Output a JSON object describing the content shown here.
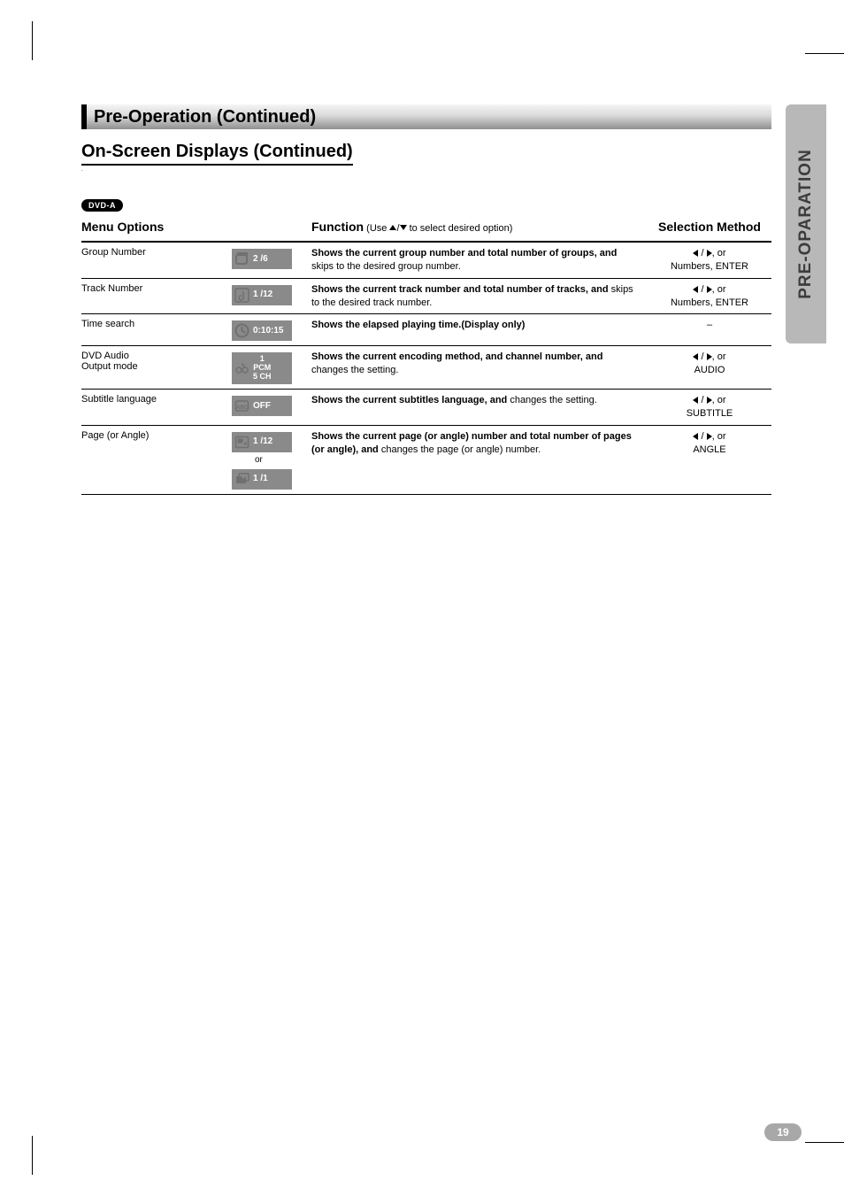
{
  "crop_marks": true,
  "banner_title": "Pre-Operation (Continued)",
  "subtitle": "On-Screen Displays (Continued)",
  "pill": "DVD-A",
  "side_tab": "PRE-OPARATION",
  "page_number": "19",
  "headers": {
    "menu": "Menu Options",
    "function_label": "Function",
    "function_hint_pre": " (Use ",
    "function_hint_post": " to select desired option)",
    "selection": "Selection Method"
  },
  "rows": [
    {
      "menu": "Group Number",
      "icon": {
        "glyph": "group",
        "text": "2 /6"
      },
      "func_bold": "Shows the current group number and total number of groups, and ",
      "func_rest": "skips to the desired group number.",
      "sel": [
        "lr",
        "Numbers, ENTER"
      ]
    },
    {
      "menu": "Track Number",
      "icon": {
        "glyph": "track",
        "text": "1 /12"
      },
      "func_bold": "Shows the current track number and total number of tracks, and ",
      "func_rest": "skips to the desired track number.",
      "sel": [
        "lr",
        "Numbers, ENTER"
      ]
    },
    {
      "menu": "Time search",
      "icon": {
        "glyph": "clock",
        "text": "0:10:15"
      },
      "func_bold": "Shows the elapsed playing time.(Display only)",
      "func_rest": "",
      "sel": [
        "dash"
      ]
    },
    {
      "menu": "DVD Audio Output mode",
      "icon": {
        "glyph": "audio",
        "multi": true,
        "line1": "1",
        "line2": "PCM",
        "line3": "5 CH"
      },
      "func_bold": "Shows the current encoding method, and channel number, and ",
      "func_rest": "changes the setting.",
      "sel": [
        "lr",
        "AUDIO"
      ]
    },
    {
      "menu": "Subtitle language",
      "icon": {
        "glyph": "subtitle",
        "text": "OFF"
      },
      "func_bold": "Shows the current subtitles language, and",
      "func_rest": " changes the setting.",
      "sel": [
        "lr",
        "SUBTITLE"
      ]
    },
    {
      "menu": "Page (or Angle)",
      "icon": {
        "glyph": "page",
        "text": "1 /12"
      },
      "icon2": {
        "glyph": "angle",
        "text": "1 /1",
        "or": "or"
      },
      "func_bold": "Shows the current page (or angle) number and total number of pages (or angle), and ",
      "func_rest": "changes the page (or angle) number.",
      "sel": [
        "lr",
        "ANGLE"
      ]
    }
  ]
}
